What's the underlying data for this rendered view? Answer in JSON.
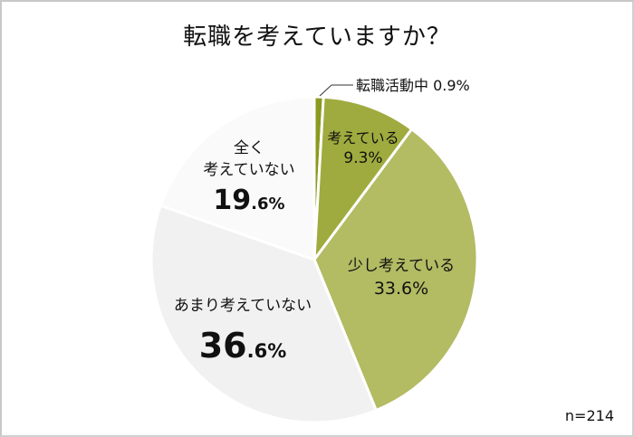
{
  "chart_data": {
    "type": "pie",
    "title": "転職を考えていますか？",
    "categories": [
      "転職活動中",
      "考えている",
      "少し考えている",
      "あまり考えていない",
      "全く考えていない"
    ],
    "values": [
      0.9,
      9.3,
      33.6,
      36.6,
      19.6
    ],
    "unit": "%",
    "colors": [
      "#8a9a1e",
      "#9fab3e",
      "#b3bb63",
      "#f1f1f1",
      "#fafafa"
    ],
    "sample_size": "n=214",
    "start_angle_deg": 0,
    "direction": "clockwise"
  },
  "title": "転職を考えていますか？",
  "labels": {
    "active": {
      "name": "転職活動中",
      "pct": "0.9%"
    },
    "thinking": {
      "name": "考えている",
      "pct": "9.3%"
    },
    "somewhat": {
      "name": "少し考えている",
      "pct": "33.6%"
    },
    "not_much": {
      "name": "あまり考えていない",
      "int": "36",
      "dec": ".6%"
    },
    "not_at_all": {
      "line1": "全く",
      "line2": "考えていない",
      "int": "19",
      "dec": ".6%"
    }
  },
  "footer": {
    "n": "n=214"
  }
}
